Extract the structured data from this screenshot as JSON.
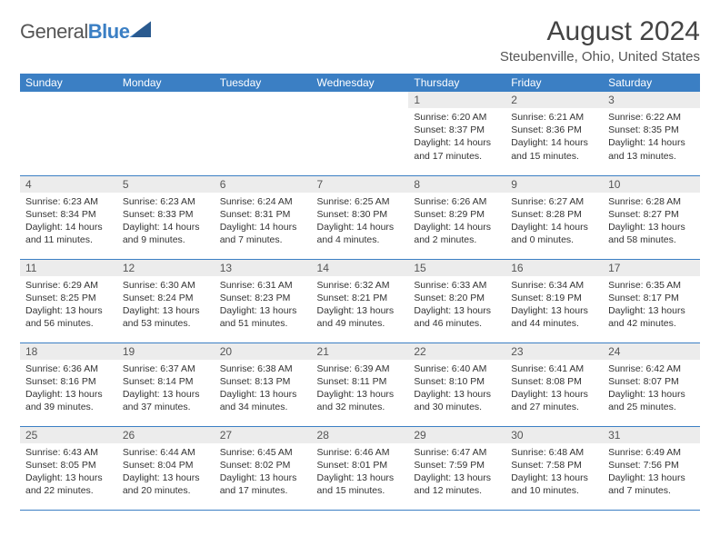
{
  "logo": {
    "part1": "General",
    "part2": "Blue"
  },
  "title": "August 2024",
  "location": "Steubenville, Ohio, United States",
  "colors": {
    "header_bg": "#3b7fc4",
    "header_text": "#ffffff",
    "daynum_bg": "#ececec",
    "border": "#3b7fc4",
    "body_text": "#333333"
  },
  "daysOfWeek": [
    "Sunday",
    "Monday",
    "Tuesday",
    "Wednesday",
    "Thursday",
    "Friday",
    "Saturday"
  ],
  "weeks": [
    [
      {
        "n": "",
        "sr": "",
        "ss": "",
        "dl": ""
      },
      {
        "n": "",
        "sr": "",
        "ss": "",
        "dl": ""
      },
      {
        "n": "",
        "sr": "",
        "ss": "",
        "dl": ""
      },
      {
        "n": "",
        "sr": "",
        "ss": "",
        "dl": ""
      },
      {
        "n": "1",
        "sr": "Sunrise: 6:20 AM",
        "ss": "Sunset: 8:37 PM",
        "dl": "Daylight: 14 hours and 17 minutes."
      },
      {
        "n": "2",
        "sr": "Sunrise: 6:21 AM",
        "ss": "Sunset: 8:36 PM",
        "dl": "Daylight: 14 hours and 15 minutes."
      },
      {
        "n": "3",
        "sr": "Sunrise: 6:22 AM",
        "ss": "Sunset: 8:35 PM",
        "dl": "Daylight: 14 hours and 13 minutes."
      }
    ],
    [
      {
        "n": "4",
        "sr": "Sunrise: 6:23 AM",
        "ss": "Sunset: 8:34 PM",
        "dl": "Daylight: 14 hours and 11 minutes."
      },
      {
        "n": "5",
        "sr": "Sunrise: 6:23 AM",
        "ss": "Sunset: 8:33 PM",
        "dl": "Daylight: 14 hours and 9 minutes."
      },
      {
        "n": "6",
        "sr": "Sunrise: 6:24 AM",
        "ss": "Sunset: 8:31 PM",
        "dl": "Daylight: 14 hours and 7 minutes."
      },
      {
        "n": "7",
        "sr": "Sunrise: 6:25 AM",
        "ss": "Sunset: 8:30 PM",
        "dl": "Daylight: 14 hours and 4 minutes."
      },
      {
        "n": "8",
        "sr": "Sunrise: 6:26 AM",
        "ss": "Sunset: 8:29 PM",
        "dl": "Daylight: 14 hours and 2 minutes."
      },
      {
        "n": "9",
        "sr": "Sunrise: 6:27 AM",
        "ss": "Sunset: 8:28 PM",
        "dl": "Daylight: 14 hours and 0 minutes."
      },
      {
        "n": "10",
        "sr": "Sunrise: 6:28 AM",
        "ss": "Sunset: 8:27 PM",
        "dl": "Daylight: 13 hours and 58 minutes."
      }
    ],
    [
      {
        "n": "11",
        "sr": "Sunrise: 6:29 AM",
        "ss": "Sunset: 8:25 PM",
        "dl": "Daylight: 13 hours and 56 minutes."
      },
      {
        "n": "12",
        "sr": "Sunrise: 6:30 AM",
        "ss": "Sunset: 8:24 PM",
        "dl": "Daylight: 13 hours and 53 minutes."
      },
      {
        "n": "13",
        "sr": "Sunrise: 6:31 AM",
        "ss": "Sunset: 8:23 PM",
        "dl": "Daylight: 13 hours and 51 minutes."
      },
      {
        "n": "14",
        "sr": "Sunrise: 6:32 AM",
        "ss": "Sunset: 8:21 PM",
        "dl": "Daylight: 13 hours and 49 minutes."
      },
      {
        "n": "15",
        "sr": "Sunrise: 6:33 AM",
        "ss": "Sunset: 8:20 PM",
        "dl": "Daylight: 13 hours and 46 minutes."
      },
      {
        "n": "16",
        "sr": "Sunrise: 6:34 AM",
        "ss": "Sunset: 8:19 PM",
        "dl": "Daylight: 13 hours and 44 minutes."
      },
      {
        "n": "17",
        "sr": "Sunrise: 6:35 AM",
        "ss": "Sunset: 8:17 PM",
        "dl": "Daylight: 13 hours and 42 minutes."
      }
    ],
    [
      {
        "n": "18",
        "sr": "Sunrise: 6:36 AM",
        "ss": "Sunset: 8:16 PM",
        "dl": "Daylight: 13 hours and 39 minutes."
      },
      {
        "n": "19",
        "sr": "Sunrise: 6:37 AM",
        "ss": "Sunset: 8:14 PM",
        "dl": "Daylight: 13 hours and 37 minutes."
      },
      {
        "n": "20",
        "sr": "Sunrise: 6:38 AM",
        "ss": "Sunset: 8:13 PM",
        "dl": "Daylight: 13 hours and 34 minutes."
      },
      {
        "n": "21",
        "sr": "Sunrise: 6:39 AM",
        "ss": "Sunset: 8:11 PM",
        "dl": "Daylight: 13 hours and 32 minutes."
      },
      {
        "n": "22",
        "sr": "Sunrise: 6:40 AM",
        "ss": "Sunset: 8:10 PM",
        "dl": "Daylight: 13 hours and 30 minutes."
      },
      {
        "n": "23",
        "sr": "Sunrise: 6:41 AM",
        "ss": "Sunset: 8:08 PM",
        "dl": "Daylight: 13 hours and 27 minutes."
      },
      {
        "n": "24",
        "sr": "Sunrise: 6:42 AM",
        "ss": "Sunset: 8:07 PM",
        "dl": "Daylight: 13 hours and 25 minutes."
      }
    ],
    [
      {
        "n": "25",
        "sr": "Sunrise: 6:43 AM",
        "ss": "Sunset: 8:05 PM",
        "dl": "Daylight: 13 hours and 22 minutes."
      },
      {
        "n": "26",
        "sr": "Sunrise: 6:44 AM",
        "ss": "Sunset: 8:04 PM",
        "dl": "Daylight: 13 hours and 20 minutes."
      },
      {
        "n": "27",
        "sr": "Sunrise: 6:45 AM",
        "ss": "Sunset: 8:02 PM",
        "dl": "Daylight: 13 hours and 17 minutes."
      },
      {
        "n": "28",
        "sr": "Sunrise: 6:46 AM",
        "ss": "Sunset: 8:01 PM",
        "dl": "Daylight: 13 hours and 15 minutes."
      },
      {
        "n": "29",
        "sr": "Sunrise: 6:47 AM",
        "ss": "Sunset: 7:59 PM",
        "dl": "Daylight: 13 hours and 12 minutes."
      },
      {
        "n": "30",
        "sr": "Sunrise: 6:48 AM",
        "ss": "Sunset: 7:58 PM",
        "dl": "Daylight: 13 hours and 10 minutes."
      },
      {
        "n": "31",
        "sr": "Sunrise: 6:49 AM",
        "ss": "Sunset: 7:56 PM",
        "dl": "Daylight: 13 hours and 7 minutes."
      }
    ]
  ]
}
